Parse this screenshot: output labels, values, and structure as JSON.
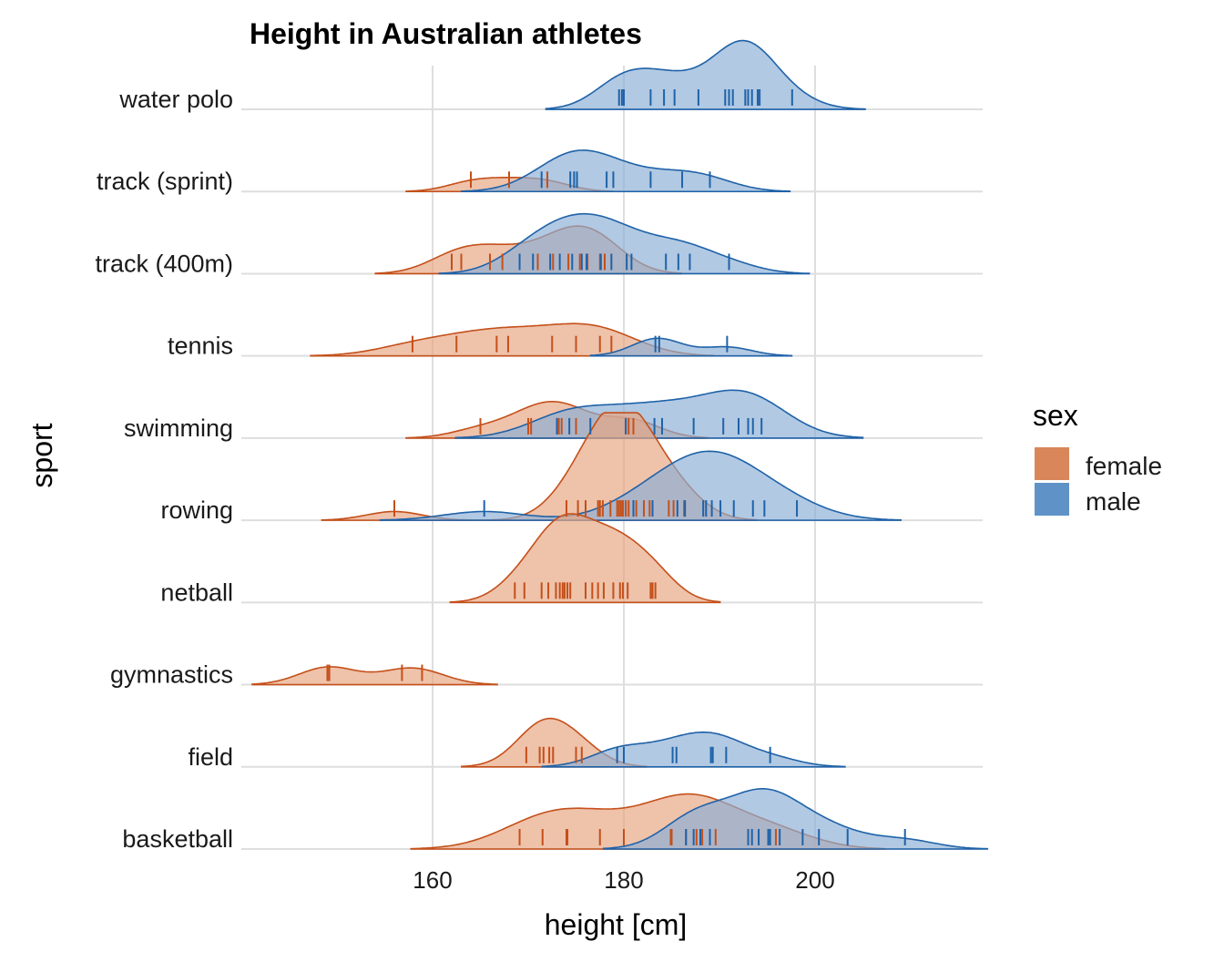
{
  "chart_data": {
    "type": "ridgeline",
    "title": "Height in Australian athletes",
    "xlabel": "height [cm]",
    "ylabel": "sport",
    "xlim": [
      140,
      217
    ],
    "xticks": [
      160,
      180,
      200
    ],
    "grid": true,
    "legend": {
      "title": "sex",
      "placement": "right",
      "entries": [
        {
          "name": "female",
          "color": "#d9865a"
        },
        {
          "name": "male",
          "color": "#5f93c8"
        }
      ]
    },
    "colors": {
      "female_fill": "#e8a582",
      "female_line": "#c4501a",
      "male_fill": "#8cb0d6",
      "male_line": "#1f62a8"
    },
    "categories": [
      "basketball",
      "field",
      "gymnastics",
      "netball",
      "rowing",
      "swimming",
      "tennis",
      "track (400m)",
      "track (sprint)",
      "water polo"
    ],
    "series": [
      {
        "name": "female",
        "data": {
          "basketball": [
            169.1,
            171.5,
            174.0,
            174.1,
            177.5,
            180.0,
            184.9,
            185.0,
            186.5,
            187.6,
            188.2,
            189.6,
            195.1,
            195.9
          ],
          "field": [
            169.8,
            171.2,
            171.6,
            172.2,
            172.6,
            175.0,
            175.6
          ],
          "gymnastics": [
            149.0,
            149.2,
            156.8,
            158.9
          ],
          "netball": [
            168.6,
            169.6,
            171.4,
            172.1,
            172.9,
            173.3,
            173.6,
            173.8,
            174.1,
            174.4,
            176.0,
            176.7,
            177.3,
            177.9,
            178.9,
            179.6,
            179.9,
            180.4,
            182.8,
            183.0,
            183.3
          ],
          "rowing": [
            156.0,
            174.0,
            175.2,
            176.0,
            177.3,
            177.5,
            177.8,
            178.6,
            179.3,
            179.5,
            179.7,
            179.9,
            180.2,
            180.5,
            181.0,
            181.3,
            182.1,
            182.7,
            184.7,
            185.2,
            186.3
          ],
          "swimming": [
            165.0,
            170.0,
            170.3,
            173.2,
            173.5,
            175.0,
            180.5,
            181.0
          ],
          "tennis": [
            157.9,
            162.5,
            166.7,
            167.9,
            172.5,
            175.0,
            177.5,
            178.7
          ],
          "track (400m)": [
            162.0,
            163.0,
            166.0,
            167.3,
            171.0,
            172.6,
            174.2,
            175.4,
            176.2,
            177.5,
            178.0
          ],
          "track (sprint)": [
            164.0,
            168.0,
            172.0
          ]
        }
      },
      {
        "name": "male",
        "data": {
          "basketball": [
            186.5,
            187.3,
            188.0,
            189.0,
            193.0,
            193.4,
            194.1,
            195.1,
            195.3,
            196.3,
            198.7,
            200.4,
            203.4,
            209.4
          ],
          "field": [
            179.3,
            180.0,
            185.1,
            185.5,
            189.1,
            189.3,
            190.7,
            195.3
          ],
          "rowing": [
            165.4,
            181.0,
            183.0,
            185.6,
            186.4,
            188.3,
            188.6,
            189.2,
            190.1,
            191.5,
            193.5,
            194.7,
            198.1
          ],
          "swimming": [
            173.0,
            174.3,
            176.5,
            180.2,
            183.2,
            184.0,
            187.3,
            190.4,
            192.0,
            193.0,
            193.5,
            194.4
          ],
          "tennis": [
            183.3,
            183.7,
            190.8
          ],
          "track (400m)": [
            169.1,
            170.5,
            172.3,
            173.3,
            174.6,
            175.6,
            176.1,
            177.6,
            178.7,
            180.3,
            180.8,
            184.4,
            185.7,
            186.9,
            191.0
          ],
          "track (sprint)": [
            171.4,
            174.4,
            174.8,
            175.1,
            178.2,
            178.9,
            182.8,
            186.1,
            189.0
          ],
          "water polo": [
            179.5,
            179.8,
            180.0,
            182.8,
            184.2,
            185.3,
            187.8,
            190.6,
            191.0,
            191.4,
            192.7,
            193.0,
            193.4,
            194.0,
            194.2,
            197.6
          ]
        }
      }
    ]
  }
}
